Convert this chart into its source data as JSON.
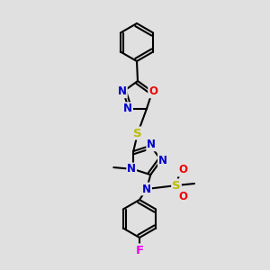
{
  "bg_color": "#e0e0e0",
  "bond_color": "#000000",
  "bond_lw": 1.5,
  "atom_colors": {
    "N": "#0000cc",
    "O": "#ee0000",
    "S": "#bbbb00",
    "F": "#ee00ee",
    "C": "#000000"
  },
  "fs": 8.5,
  "figsize": [
    3.0,
    3.0
  ],
  "dpi": 100,
  "xlim": [
    0,
    300
  ],
  "ylim": [
    0,
    300
  ]
}
